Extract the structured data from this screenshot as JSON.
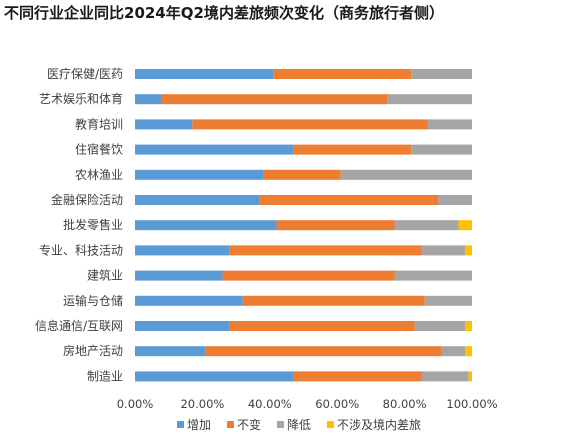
{
  "chart_data": {
    "type": "bar",
    "orientation": "horizontal",
    "stacked": true,
    "percent": true,
    "title": "不同行业企业同比2024年Q2境内差旅频次变化（商务旅行者侧）",
    "categories": [
      "医疗保健/医药",
      "艺术娱乐和体育",
      "教育培训",
      "住宿餐饮",
      "农林渔业",
      "金融保险活动",
      "批发零售业",
      "专业、科技活动",
      "建筑业",
      "运输与仓储",
      "信息通信/互联网",
      "房地产活动",
      "制造业"
    ],
    "series": [
      {
        "name": "增加",
        "color": "#5B9BD5",
        "values": [
          0.41,
          0.08,
          0.17,
          0.47,
          0.38,
          0.37,
          0.42,
          0.28,
          0.26,
          0.32,
          0.28,
          0.21,
          0.47
        ]
      },
      {
        "name": "不变",
        "color": "#ED7D31",
        "values": [
          0.41,
          0.67,
          0.7,
          0.35,
          0.23,
          0.53,
          0.35,
          0.57,
          0.51,
          0.54,
          0.55,
          0.7,
          0.38
        ]
      },
      {
        "name": "降低",
        "color": "#A5A5A5",
        "values": [
          0.18,
          0.25,
          0.13,
          0.18,
          0.39,
          0.1,
          0.19,
          0.13,
          0.23,
          0.14,
          0.15,
          0.07,
          0.14
        ]
      },
      {
        "name": "不涉及境内差旅",
        "color": "#FFC000",
        "values": [
          0.0,
          0.0,
          0.0,
          0.0,
          0.0,
          0.0,
          0.04,
          0.02,
          0.0,
          0.0,
          0.02,
          0.02,
          0.01
        ]
      }
    ],
    "xlim": [
      0,
      1
    ],
    "x_ticks": [
      "0.00%",
      "20.00%",
      "40.00%",
      "60.00%",
      "80.00%",
      "100.00%"
    ],
    "grid": false,
    "legend_position": "bottom"
  }
}
